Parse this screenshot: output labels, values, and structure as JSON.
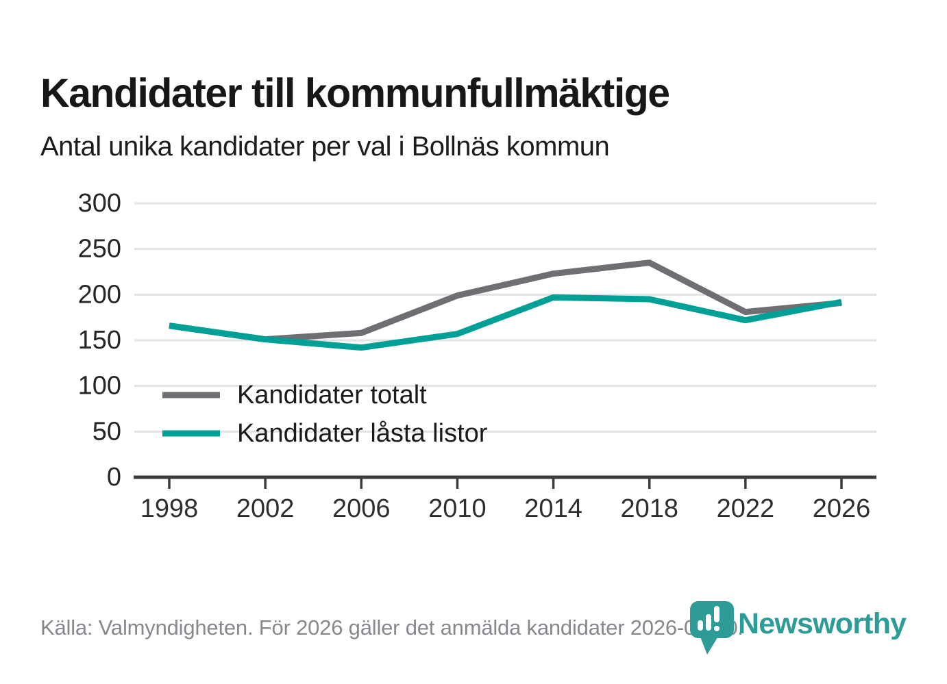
{
  "header": {
    "title": "Kandidater till kommunfullmäktige",
    "subtitle": "Antal unika kandidater per val i Bollnäs kommun"
  },
  "chart_data": {
    "type": "line",
    "x": [
      1998,
      2002,
      2006,
      2010,
      2014,
      2018,
      2022,
      2026
    ],
    "series": [
      {
        "name": "Kandidater totalt",
        "color": "#6e6e73",
        "values": [
          166,
          151,
          158,
          199,
          223,
          235,
          181,
          191
        ]
      },
      {
        "name": "Kandidater låsta listor",
        "color": "#00a096",
        "values": [
          166,
          151,
          142,
          157,
          197,
          195,
          172,
          192
        ]
      }
    ],
    "ylim": [
      0,
      300
    ],
    "yticks": [
      0,
      50,
      100,
      150,
      200,
      250,
      300
    ],
    "grid": true,
    "legend_position": "inside-left-middle",
    "grid_color": "#e3e3e3",
    "axis_color": "#3b3b3b",
    "tick_label_color": "#2e2e2e"
  },
  "footer": {
    "source": "Källa: Valmyndigheten. För 2026 gäller det anmälda kandidater 2026-04-10."
  },
  "branding": {
    "logo_text": "Newsworthy",
    "logo_color": "#2e9c96",
    "logo_icon": "newsworthy-pin-barchart-icon"
  }
}
